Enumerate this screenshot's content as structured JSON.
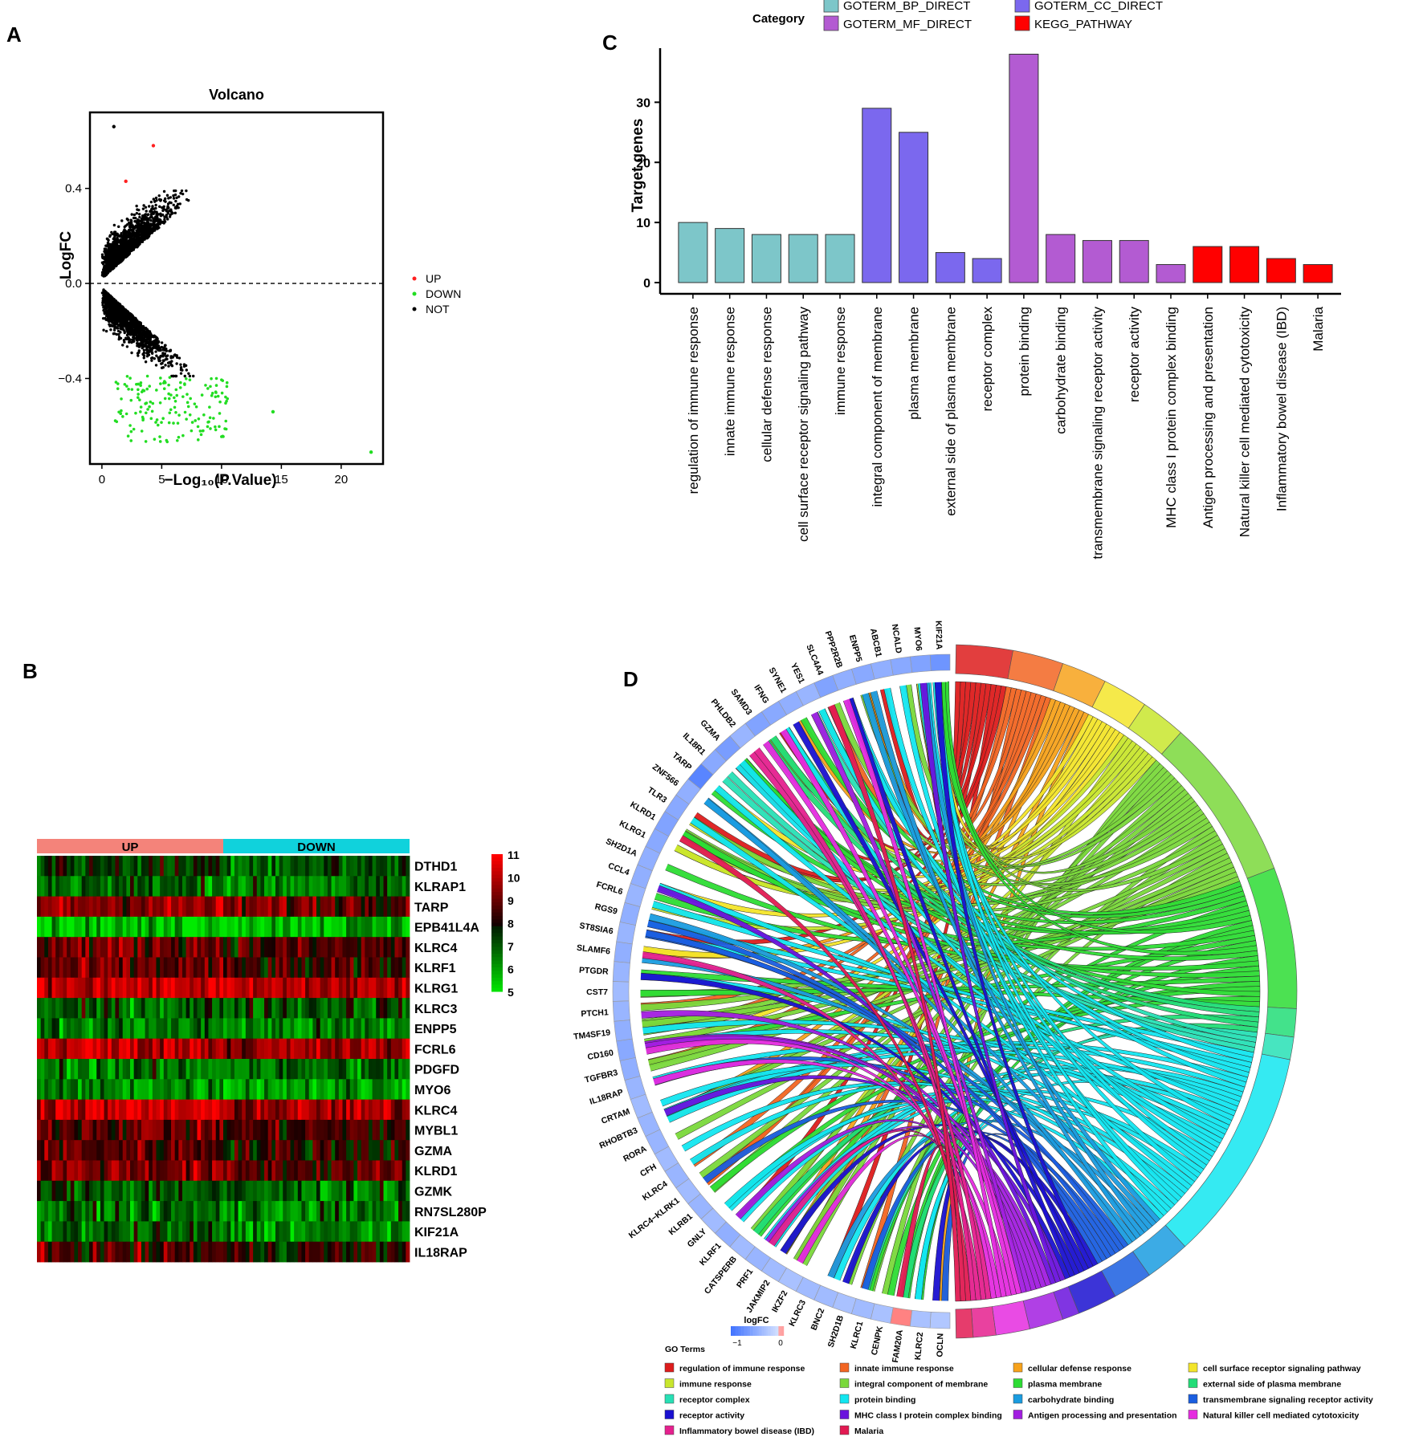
{
  "panels": {
    "a": "A",
    "b": "B",
    "c": "C",
    "d": "D"
  },
  "chart_data": [
    {
      "id": "volcano",
      "type": "scatter",
      "title": "Volcano",
      "xlabel": "−Log₁₀(P.Value)",
      "ylabel": "LogFC",
      "xlim": [
        -1,
        23.5
      ],
      "ylim": [
        -0.76,
        0.72
      ],
      "xticks": [
        0,
        5,
        10,
        15,
        20
      ],
      "yticks": [
        -0.4,
        0.0,
        0.4
      ],
      "ytick_labels": [
        "−0.4",
        "0.0",
        "0.4"
      ],
      "legend": [
        {
          "name": "UP",
          "color": "#ff2020"
        },
        {
          "name": "DOWN",
          "color": "#22dd22"
        },
        {
          "name": "NOT",
          "color": "#000000"
        }
      ],
      "highlighted_points": [
        {
          "x": 4.3,
          "y": 0.58,
          "group": "UP"
        },
        {
          "x": 2.0,
          "y": 0.43,
          "group": "UP"
        },
        {
          "x": 22.5,
          "y": -0.71,
          "group": "DOWN"
        },
        {
          "x": 14.3,
          "y": -0.54,
          "group": "DOWN"
        },
        {
          "x": 1.0,
          "y": 0.66,
          "group": "NOT"
        }
      ]
    },
    {
      "id": "heatmap",
      "type": "heatmap",
      "groups": [
        {
          "name": "UP",
          "color": "#f4837a"
        },
        {
          "name": "DOWN",
          "color": "#10d2dc"
        }
      ],
      "genes": [
        "DTHD1",
        "KLRAP1",
        "TARP",
        "EPB41L4A",
        "KLRC4",
        "KLRF1",
        "KLRG1",
        "KLRC3",
        "ENPP5",
        "FCRL6",
        "PDGFD",
        "MYO6",
        "KLRC4",
        "MYBL1",
        "GZMA",
        "KLRD1",
        "GZMK",
        "RN7SL280P",
        "KIF21A",
        "IL18RAP"
      ],
      "row_mean_up": [
        7.6,
        7.0,
        9.6,
        5.6,
        9.2,
        8.9,
        10.4,
        7.0,
        6.6,
        10.2,
        6.6,
        6.4,
        10.3,
        9.1,
        8.9,
        9.4,
        7.2,
        6.7,
        6.9,
        8.6
      ],
      "row_mean_down": [
        7.2,
        6.6,
        9.2,
        5.9,
        8.6,
        8.3,
        9.9,
        7.3,
        6.4,
        9.6,
        6.8,
        6.2,
        9.7,
        8.5,
        8.3,
        8.8,
        6.8,
        6.5,
        6.4,
        8.2
      ],
      "colorbar": {
        "min": 5,
        "max": 11,
        "ticks": [
          11,
          10,
          9,
          8,
          7,
          6,
          5
        ]
      }
    },
    {
      "id": "go-bar",
      "type": "bar",
      "ylabel": "Target genes",
      "ylim": [
        0,
        39
      ],
      "yticks": [
        0,
        10,
        20,
        30
      ],
      "legend_title": "Category",
      "categories_legend": [
        {
          "name": "GOTERM_BP_DIRECT",
          "color": "#7dc6c9"
        },
        {
          "name": "GOTERM_CC_DIRECT",
          "color": "#7b68ee"
        },
        {
          "name": "GOTERM_MF_DIRECT",
          "color": "#b35bd2"
        },
        {
          "name": "KEGG_PATHWAY",
          "color": "#ff0000"
        }
      ],
      "terms": [
        "regulation of immune response",
        "innate immune response",
        "cellular defense response",
        "cell surface receptor signaling pathway",
        "immune response",
        "integral component of membrane",
        "plasma membrane",
        "external side of plasma membrane",
        "receptor complex",
        "protein binding",
        "carbohydrate binding",
        "transmembrane signaling receptor activity",
        "receptor activity",
        "MHC class I protein complex binding",
        "Antigen processing and presentation",
        "Natural killer cell mediated cytotoxicity",
        "Inflammatory bowel disease (IBD)",
        "Malaria"
      ],
      "values": [
        10,
        9,
        8,
        8,
        8,
        29,
        25,
        5,
        4,
        38,
        8,
        7,
        7,
        3,
        6,
        6,
        4,
        3
      ],
      "groups": [
        0,
        0,
        0,
        0,
        0,
        1,
        1,
        1,
        1,
        2,
        2,
        2,
        2,
        2,
        3,
        3,
        3,
        3
      ]
    },
    {
      "id": "chord",
      "type": "chord",
      "genes": [
        "KIF21A",
        "MYO6",
        "NCALD",
        "ABCB1",
        "ENPP5",
        "PPP2R2B",
        "SLC4A4",
        "YES1",
        "SYNE1",
        "IFNG",
        "SAMD3",
        "PHLDB2",
        "GZMA",
        "IL18R1",
        "TARP",
        "ZNF566",
        "TLR3",
        "KLRD1",
        "KLRG1",
        "SH2D1A",
        "CCL4",
        "FCRL6",
        "RGS9",
        "ST8SIA6",
        "SLAMF6",
        "PTGDR",
        "CST7",
        "PTCH1",
        "TM4SF19",
        "CD160",
        "TGFBR3",
        "IL18RAP",
        "CRTAM",
        "RHOBTB3",
        "RORA",
        "CFH",
        "KLRC4",
        "KLRC4−KLRK1",
        "KLRB1",
        "GNLY",
        "KLRF1",
        "CATSPERB",
        "PRF1",
        "JAKMIP2",
        "IKZF2",
        "KLRC3",
        "BNC2",
        "SH2D1B",
        "KLRC1",
        "CENPK",
        "FAM20A",
        "KLRC2",
        "OCLN"
      ],
      "gene_logfc": [
        -0.72,
        -0.6,
        -0.55,
        -0.5,
        -0.55,
        -0.5,
        -0.6,
        -0.45,
        -0.5,
        -0.55,
        -0.6,
        -0.45,
        -0.65,
        -0.55,
        -0.85,
        -0.5,
        -0.55,
        -0.6,
        -0.55,
        -0.5,
        -0.5,
        -0.45,
        -0.5,
        -0.45,
        -0.5,
        -0.45,
        -0.4,
        -0.45,
        -0.5,
        -0.55,
        -0.5,
        -0.45,
        -0.4,
        -0.45,
        -0.45,
        -0.4,
        -0.45,
        -0.4,
        -0.45,
        -0.4,
        -0.5,
        -0.4,
        -0.45,
        -0.4,
        -0.35,
        -0.4,
        -0.4,
        -0.35,
        -0.4,
        -0.35,
        0.45,
        -0.35,
        -0.3
      ],
      "logfc_scale": {
        "title": "logFC",
        "min_label": "−1",
        "max_label": "0"
      },
      "go_terms_title": "GO Terms",
      "go_terms": [
        {
          "name": "regulation of immune response",
          "color": "#dd1c1c",
          "genes": 10
        },
        {
          "name": "innate immune response",
          "color": "#f26522",
          "genes": 9
        },
        {
          "name": "cellular defense response",
          "color": "#f7a21b",
          "genes": 8
        },
        {
          "name": "cell surface receptor signaling pathway",
          "color": "#f3e52a",
          "genes": 8
        },
        {
          "name": "immune response",
          "color": "#c8e62d",
          "genes": 8
        },
        {
          "name": "integral component of membrane",
          "color": "#7ad83b",
          "genes": 29
        },
        {
          "name": "plasma membrane",
          "color": "#2ddc34",
          "genes": 25
        },
        {
          "name": "external side of plasma membrane",
          "color": "#22dd77",
          "genes": 5
        },
        {
          "name": "receptor complex",
          "color": "#27e0b5",
          "genes": 4
        },
        {
          "name": "protein binding",
          "color": "#12e6f0",
          "genes": 38
        },
        {
          "name": "carbohydrate binding",
          "color": "#1a9ce0",
          "genes": 8
        },
        {
          "name": "transmembrane signaling receptor activity",
          "color": "#1a5ee0",
          "genes": 7
        },
        {
          "name": "receptor activity",
          "color": "#1a10d0",
          "genes": 7
        },
        {
          "name": "MHC class I protein complex binding",
          "color": "#6a12dd",
          "genes": 3
        },
        {
          "name": "Antigen processing and presentation",
          "color": "#a21ee0",
          "genes": 6
        },
        {
          "name": "Natural killer cell mediated cytotoxicity",
          "color": "#e52bdf",
          "genes": 6
        },
        {
          "name": "Inflammatory bowel disease (IBD)",
          "color": "#e5208e",
          "genes": 4
        },
        {
          "name": "Malaria",
          "color": "#e21a52",
          "genes": 3
        }
      ]
    }
  ]
}
